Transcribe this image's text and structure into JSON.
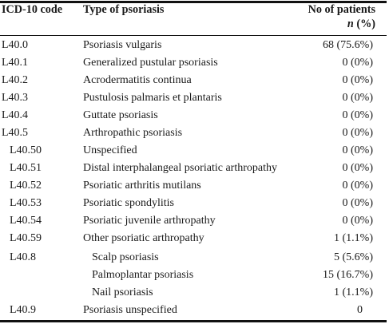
{
  "table": {
    "headers": {
      "code": "ICD-10 code",
      "type": "Type of psoriasis",
      "count_line1": "No of patients",
      "count_n": "n",
      "count_pct": "(%)"
    },
    "rows": [
      {
        "code": "L40.0",
        "type": "Psoriasis vulgaris",
        "count": "68 (75.6%)"
      },
      {
        "code": "L40.1",
        "type": "Generalized pustular psoriasis",
        "count": "0 (0%)"
      },
      {
        "code": "L40.2",
        "type": "Acrodermatitis continua",
        "count": "0 (0%)"
      },
      {
        "code": "L40.3",
        "type": "Pustulosis palmaris et plantaris",
        "count": "0 (0%)"
      },
      {
        "code": "L40.4",
        "type": "Guttate psoriasis",
        "count": "0 (0%)"
      },
      {
        "code": "L40.5",
        "type": "Arthropathic psoriasis",
        "count": "0 (0%)"
      },
      {
        "code": "L40.50",
        "type": "Unspecified",
        "count": "0 (0%)"
      },
      {
        "code": "L40.51",
        "type": "Distal interphalangeal psoriatic arthropathy",
        "count": "0 (0%)"
      },
      {
        "code": "L40.52",
        "type": "Psoriatic arthritis mutilans",
        "count": "0 (0%)"
      },
      {
        "code": "L40.53",
        "type": "Psoriatic spondylitis",
        "count": "0 (0%)"
      },
      {
        "code": "L40.54",
        "type": "Psoriatic juvenile arthropathy",
        "count": "0 (0%)"
      },
      {
        "code": "L40.59",
        "type": "Other psoriatic arthropathy",
        "count": "1 (1.1%)"
      },
      {
        "code": "L40.8",
        "type": "Scalp psoriasis",
        "count": "5 (5.6%)"
      },
      {
        "code": "",
        "type": "Palmoplantar psoriasis",
        "count": "15 (16.7%)"
      },
      {
        "code": "",
        "type": "Nail psoriasis",
        "count": "1 (1.1%)"
      },
      {
        "code": "L40.9",
        "type": "Psoriasis unspecified",
        "count": "0"
      }
    ]
  }
}
